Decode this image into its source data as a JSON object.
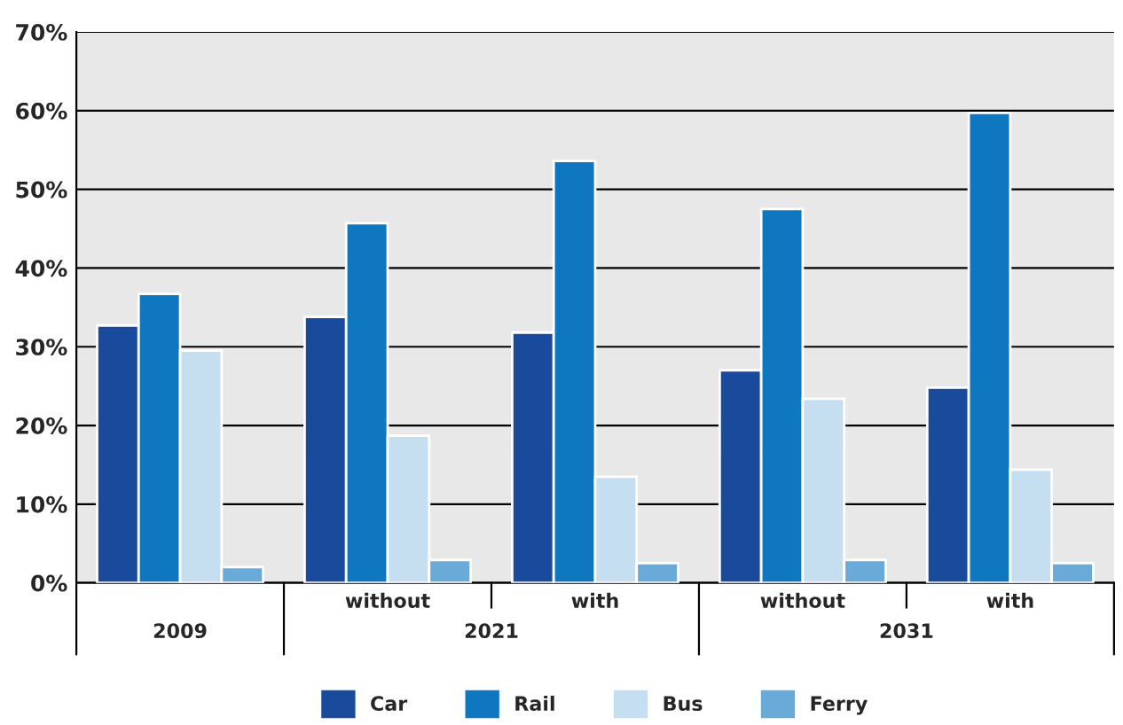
{
  "chart_data": {
    "type": "bar",
    "categories": [
      null,
      "without",
      "with",
      "without",
      "with"
    ],
    "series": [
      {
        "name": "Car",
        "color": "#1a4a9c",
        "values": [
          32.7,
          33.8,
          31.8,
          27.0,
          24.8
        ]
      },
      {
        "name": "Rail",
        "color": "#0f77c0",
        "values": [
          36.7,
          45.7,
          53.6,
          47.5,
          59.7
        ]
      },
      {
        "name": "Bus",
        "color": "#c5dff0",
        "values": [
          29.5,
          18.7,
          13.5,
          23.4,
          14.4
        ]
      },
      {
        "name": "Ferry",
        "color": "#6aaad9",
        "values": [
          2.0,
          2.9,
          2.5,
          2.9,
          2.5
        ]
      }
    ],
    "annotations": [
      "2009",
      "2021",
      "2031"
    ],
    "ylim": [
      0,
      70
    ],
    "yticks": [
      {
        "value": 0,
        "label": "0%"
      },
      {
        "value": 10,
        "label": "10%"
      },
      {
        "value": 20,
        "label": "20%"
      },
      {
        "value": 30,
        "label": "30%"
      },
      {
        "value": 40,
        "label": "40%"
      },
      {
        "value": 50,
        "label": "50%"
      },
      {
        "value": 60,
        "label": "60%"
      },
      {
        "value": 70,
        "label": "70%"
      }
    ],
    "grid": "y",
    "legend": "bottom"
  }
}
